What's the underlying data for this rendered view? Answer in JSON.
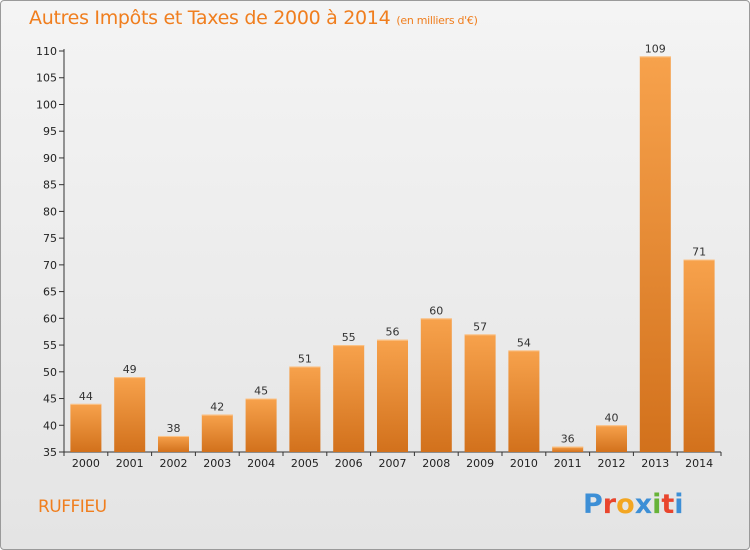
{
  "header": {
    "title": "Autres Impôts et Taxes de 2000 à 2014",
    "unit": "(en milliers d'€)"
  },
  "footer": {
    "place": "RUFFIEU",
    "brand_letters": [
      "P",
      "r",
      "o",
      "x",
      "i",
      "t",
      "i"
    ],
    "brand_colors": [
      "#3d8fd6",
      "#e9452d",
      "#f3a622",
      "#3d8fd6",
      "#67b338",
      "#e9452d",
      "#3d8fd6"
    ]
  },
  "colors": {
    "title": "#f07e1e",
    "bar_light": "#f7a24c",
    "bar_dark": "#d2711c"
  },
  "chart_data": {
    "type": "bar",
    "title": "Autres Impôts et Taxes de 2000 à 2014",
    "subtitle": "(en milliers d'€)",
    "categories": [
      "2000",
      "2001",
      "2002",
      "2003",
      "2004",
      "2005",
      "2006",
      "2007",
      "2008",
      "2009",
      "2010",
      "2011",
      "2012",
      "2013",
      "2014"
    ],
    "values": [
      44,
      49,
      38,
      42,
      45,
      51,
      55,
      56,
      60,
      57,
      54,
      36,
      40,
      109,
      71
    ],
    "ylim": [
      35,
      110
    ],
    "yticks": [
      35,
      40,
      45,
      50,
      55,
      60,
      65,
      70,
      75,
      80,
      85,
      90,
      95,
      100,
      105,
      110
    ],
    "grid": false,
    "data_labels": true
  }
}
